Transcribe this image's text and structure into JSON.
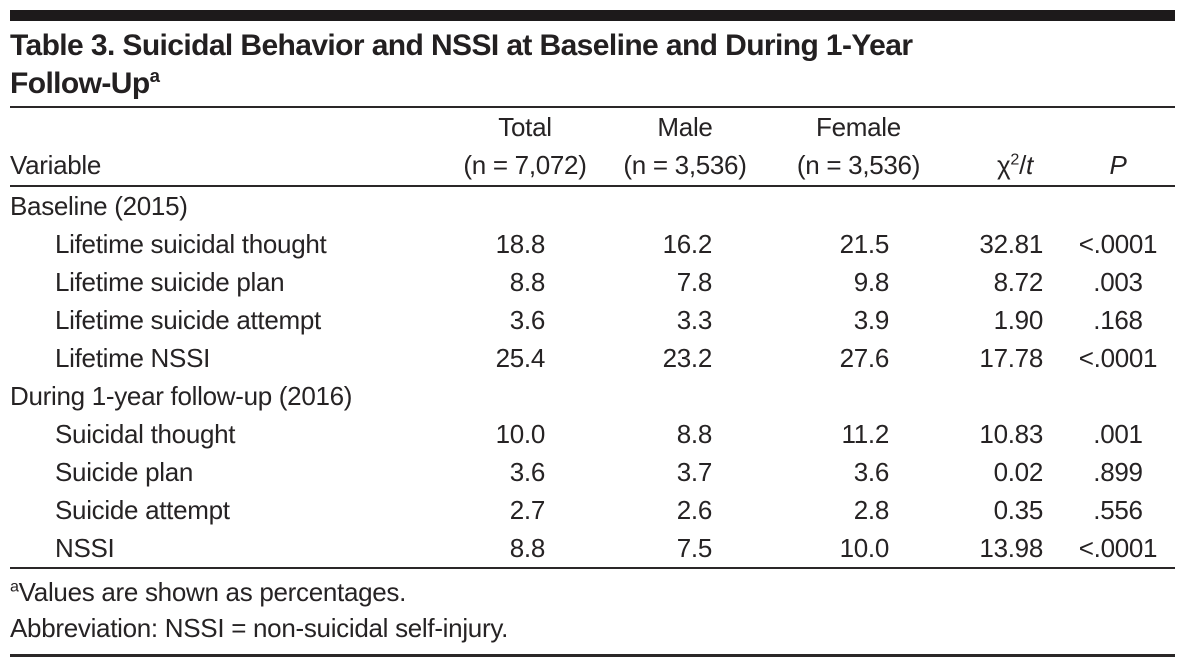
{
  "colors": {
    "text": "#262324",
    "accent_bar": "#1d1a1b",
    "rules": "#2a2728"
  },
  "table": {
    "title_line1": "Table 3. Suicidal Behavior and NSSI at Baseline and During 1-Year",
    "title_line2": "Follow-Up",
    "title_footnote_marker": "a",
    "header": {
      "variable": "Variable",
      "total_label": "Total",
      "total_n": "(n = 7,072)",
      "male_label": "Male",
      "male_n": "(n = 3,536)",
      "female_label": "Female",
      "female_n": "(n = 3,536)",
      "chi_base": "χ",
      "chi_sup": "2",
      "chi_slash": "/",
      "chi_t": "t",
      "p_label": "P"
    },
    "rows": [
      {
        "kind": "section",
        "label": "Baseline (2015)"
      },
      {
        "kind": "data",
        "label": "Lifetime suicidal thought",
        "total": "18.8",
        "male": "16.2",
        "female": "21.5",
        "chi": "32.81",
        "p": "<.0001"
      },
      {
        "kind": "data",
        "label": "Lifetime suicide plan",
        "total": "8.8",
        "male": "7.8",
        "female": "9.8",
        "chi": "8.72",
        "p": ".003"
      },
      {
        "kind": "data",
        "label": "Lifetime suicide attempt",
        "total": "3.6",
        "male": "3.3",
        "female": "3.9",
        "chi": "1.90",
        "p": ".168"
      },
      {
        "kind": "data",
        "label": "Lifetime NSSI",
        "total": "25.4",
        "male": "23.2",
        "female": "27.6",
        "chi": "17.78",
        "p": "<.0001"
      },
      {
        "kind": "section",
        "label": "During 1-year follow-up (2016)"
      },
      {
        "kind": "data",
        "label": "Suicidal thought",
        "total": "10.0",
        "male": "8.8",
        "female": "11.2",
        "chi": "10.83",
        "p": ".001"
      },
      {
        "kind": "data",
        "label": "Suicide plan",
        "total": "3.6",
        "male": "3.7",
        "female": "3.6",
        "chi": "0.02",
        "p": ".899"
      },
      {
        "kind": "data",
        "label": "Suicide attempt",
        "total": "2.7",
        "male": "2.6",
        "female": "2.8",
        "chi": "0.35",
        "p": ".556"
      },
      {
        "kind": "data",
        "label": "NSSI",
        "total": "8.8",
        "male": "7.5",
        "female": "10.0",
        "chi": "13.98",
        "p": "<.0001"
      }
    ],
    "footnotes": {
      "note_a_marker": "a",
      "note_a_text": "Values are shown as percentages.",
      "abbreviation": "Abbreviation: NSSI = non-suicidal self-injury."
    }
  }
}
